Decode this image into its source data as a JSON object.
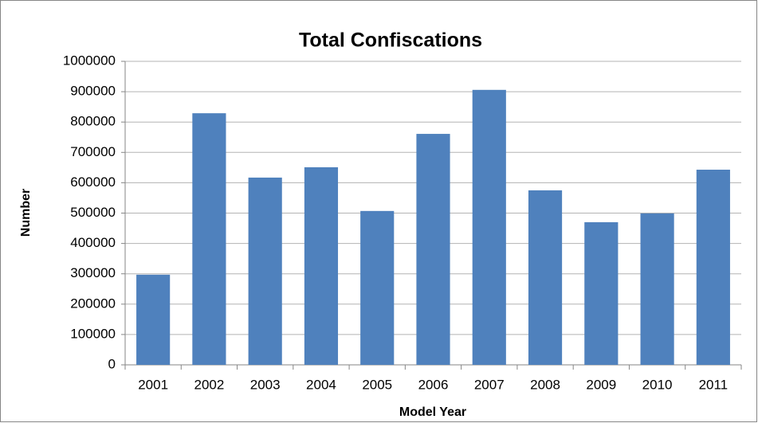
{
  "chart_data": {
    "type": "bar",
    "title": "Total Confiscations",
    "x_label": "Model Year",
    "y_label": "Number",
    "categories": [
      "2001",
      "2002",
      "2003",
      "2004",
      "2005",
      "2006",
      "2007",
      "2008",
      "2009",
      "2010",
      "2011"
    ],
    "values": [
      297000,
      829000,
      617000,
      651000,
      507000,
      761000,
      906000,
      575000,
      470000,
      499000,
      643000
    ],
    "color": "#4f81bd",
    "ylim": [
      0,
      1000000
    ],
    "yticks": [
      0,
      100000,
      200000,
      300000,
      400000,
      500000,
      600000,
      700000,
      800000,
      900000,
      1000000
    ],
    "grid": true
  }
}
